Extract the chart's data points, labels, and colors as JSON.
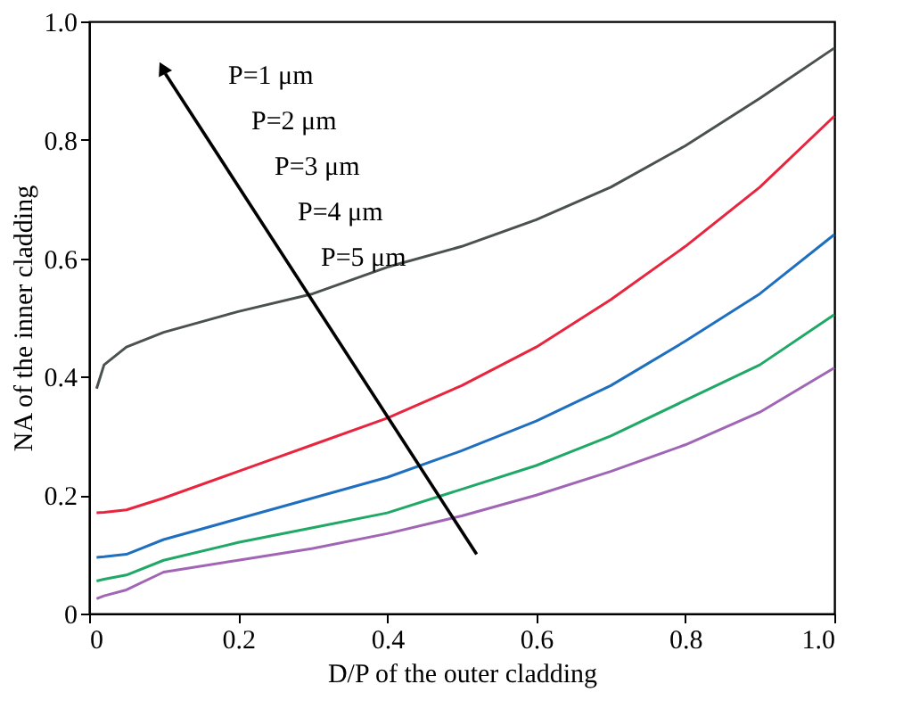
{
  "chart_data": {
    "type": "line",
    "xlabel": "D/P of the outer cladding",
    "ylabel": "NA of the inner cladding",
    "xlim": [
      0,
      1
    ],
    "ylim": [
      0,
      1
    ],
    "xticks": [
      0,
      0.2,
      0.4,
      0.6,
      0.8,
      {
        "value": 1,
        "label": "1.0"
      }
    ],
    "yticks": [
      0,
      0.2,
      0.4,
      0.6,
      0.8,
      {
        "value": 1,
        "label": "1.0"
      }
    ],
    "grid": false,
    "legend": false,
    "marker": "none",
    "line_style": "solid",
    "x": [
      0.01,
      0.02,
      0.05,
      0.1,
      0.2,
      0.3,
      0.4,
      0.5,
      0.6,
      0.7,
      0.8,
      0.9,
      1.0
    ],
    "series": [
      {
        "color": "#4a5150",
        "values": [
          0.38,
          0.42,
          0.45,
          0.475,
          0.51,
          0.54,
          0.585,
          0.62,
          0.665,
          0.72,
          0.79,
          0.87,
          0.955
        ]
      },
      {
        "color": "#e8253f",
        "values": [
          0.17,
          0.171,
          0.175,
          0.195,
          0.24,
          0.285,
          0.33,
          0.385,
          0.45,
          0.53,
          0.62,
          0.72,
          0.84
        ]
      },
      {
        "color": "#1f6fc0",
        "values": [
          0.095,
          0.096,
          0.1,
          0.125,
          0.16,
          0.195,
          0.23,
          0.275,
          0.325,
          0.385,
          0.46,
          0.54,
          0.64
        ]
      },
      {
        "color": "#1fa866",
        "values": [
          0.055,
          0.058,
          0.065,
          0.09,
          0.12,
          0.145,
          0.17,
          0.21,
          0.25,
          0.3,
          0.36,
          0.42,
          0.505
        ]
      },
      {
        "color": "#a066b5",
        "values": [
          0.025,
          0.03,
          0.04,
          0.07,
          0.09,
          0.11,
          0.135,
          0.165,
          0.2,
          0.24,
          0.285,
          0.34,
          0.415
        ]
      }
    ],
    "annotations": [
      "P=1 μm",
      "P=2 μm",
      "P=3 μm",
      "P=4 μm",
      "P=5 μm"
    ]
  }
}
